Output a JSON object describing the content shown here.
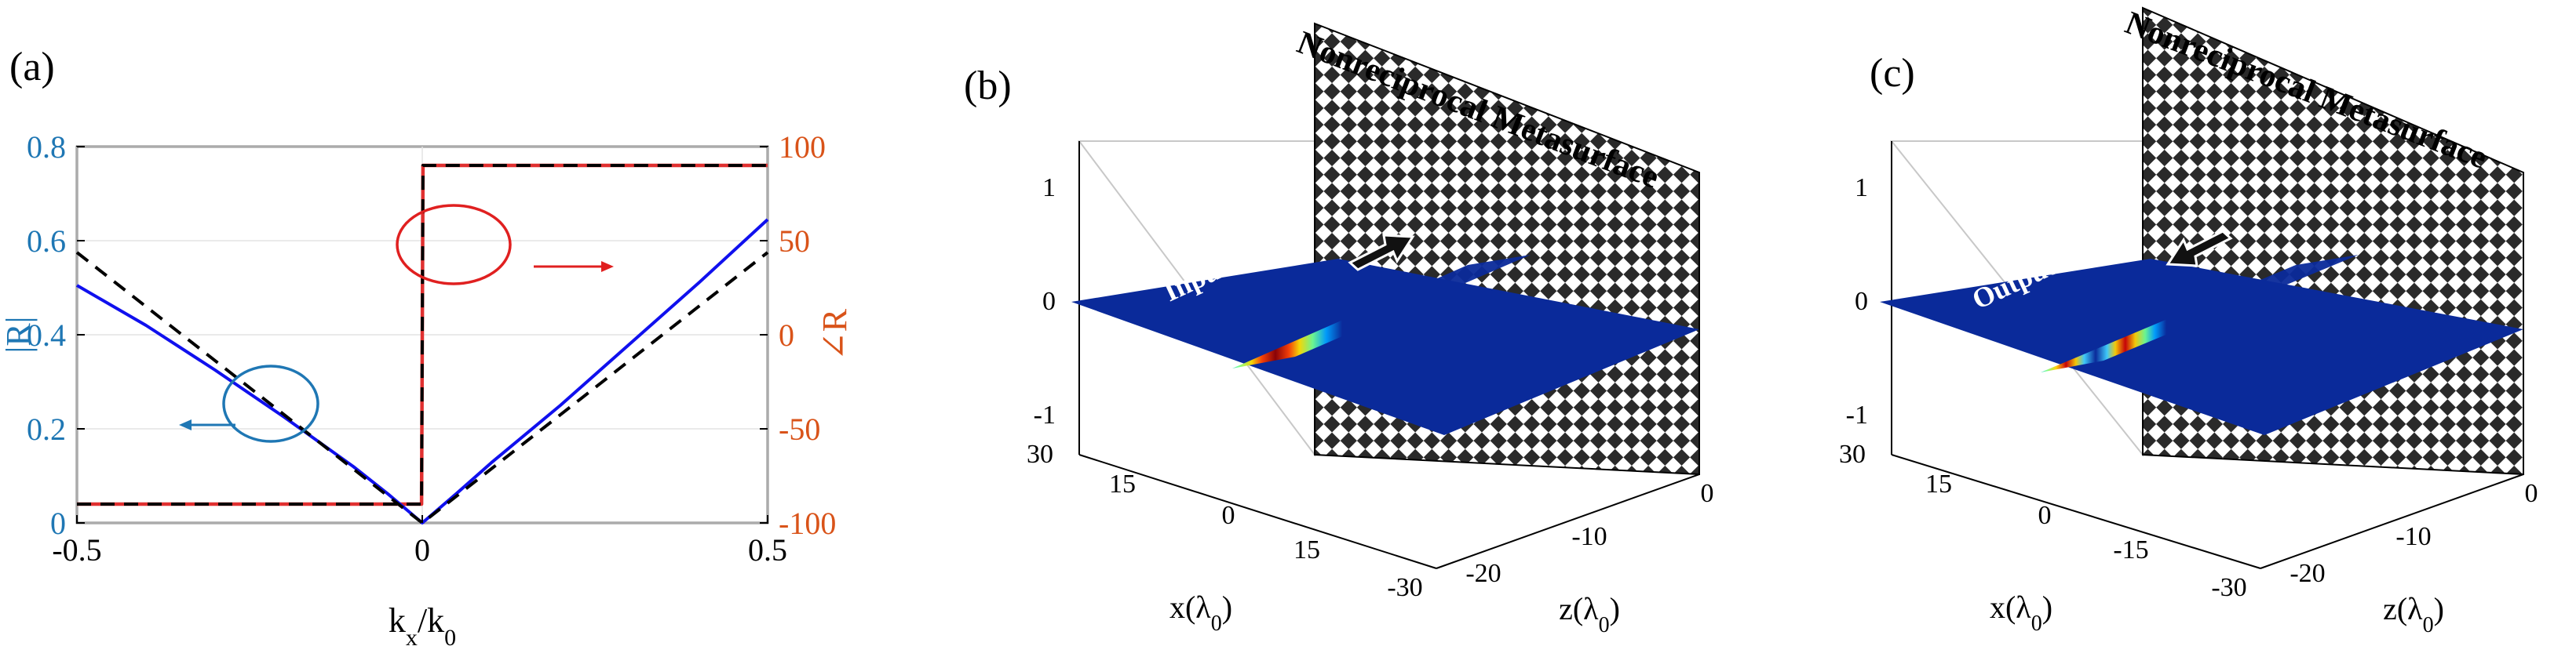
{
  "panels": {
    "a": {
      "label": "(a)"
    },
    "b": {
      "label": "(b)",
      "wall_title": "Nonreciprocal Metasurface",
      "field_label": "Input field"
    },
    "c": {
      "label": "(c)",
      "wall_title": "Nonreciprocal Metasurface",
      "field_label": "Output field"
    }
  },
  "colors": {
    "left_axis": "#1f77b4",
    "right_axis": "#d95319",
    "blue_curve": "#1010ee",
    "black_dashed": "#000000",
    "red_dashed": "#e03030",
    "annotation_red": "#e02020",
    "annotation_blue": "#1f77b4",
    "field_background": "#0a2a9a",
    "wall_dark": "#2a2a2a"
  },
  "chart_data": [
    {
      "type": "line",
      "panel": "a",
      "xlabel": "k_x/k_0",
      "ylabel_left": "|R|",
      "ylabel_right": "∠R",
      "xlim": [
        -0.5,
        0.5
      ],
      "ylim_left": [
        0,
        0.8
      ],
      "ylim_right": [
        -100,
        100
      ],
      "xticks": [
        "-0.5",
        "0",
        "0.5"
      ],
      "yticks_left": [
        "0",
        "0.2",
        "0.4",
        "0.6",
        "0.8"
      ],
      "yticks_right": [
        "-100",
        "-50",
        "0",
        "50",
        "100"
      ],
      "grid": true,
      "series": [
        {
          "axis": "left",
          "style": "solid-blue",
          "x": [
            -0.5,
            -0.4,
            -0.3,
            -0.2,
            -0.1,
            -0.05,
            0,
            0.05,
            0.1,
            0.2,
            0.3,
            0.4,
            0.5
          ],
          "y": [
            0.505,
            0.42,
            0.325,
            0.225,
            0.12,
            0.062,
            0.0,
            0.063,
            0.128,
            0.25,
            0.38,
            0.51,
            0.645
          ]
        },
        {
          "axis": "left",
          "style": "dashed-black",
          "x": [
            -0.5,
            0,
            0.5
          ],
          "y": [
            0.575,
            0.0,
            0.575
          ]
        },
        {
          "axis": "right",
          "style": "dashed-red",
          "x": [
            -0.5,
            -0.001,
            0.001,
            0.5
          ],
          "y": [
            -90,
            -90,
            90,
            90
          ]
        },
        {
          "axis": "right",
          "style": "dashed-black",
          "x": [
            -0.5,
            -0.001,
            0.001,
            0.5
          ],
          "y": [
            -90,
            -90,
            90,
            90
          ]
        }
      ]
    },
    {
      "type": "surface3d",
      "panel": "b",
      "xlabel": "x(λ_0)",
      "zlabel": "z(λ_0)",
      "x_ticks": [
        "30",
        "15",
        "0",
        "15",
        "-30"
      ],
      "z_ticks": [
        "-20",
        "-10",
        "0"
      ],
      "v_ticks": [
        "1",
        "0",
        "-1"
      ],
      "beam_profile": "single gaussian lobe"
    },
    {
      "type": "surface3d",
      "panel": "c",
      "xlabel": "x(λ_0)",
      "zlabel": "z(λ_0)",
      "x_ticks": [
        "30",
        "15",
        "0",
        "-15",
        "-30"
      ],
      "z_ticks": [
        "-20",
        "-10",
        "0"
      ],
      "v_ticks": [
        "1",
        "0",
        "-1"
      ],
      "beam_profile": "double lobe (derivative of gaussian)"
    }
  ]
}
